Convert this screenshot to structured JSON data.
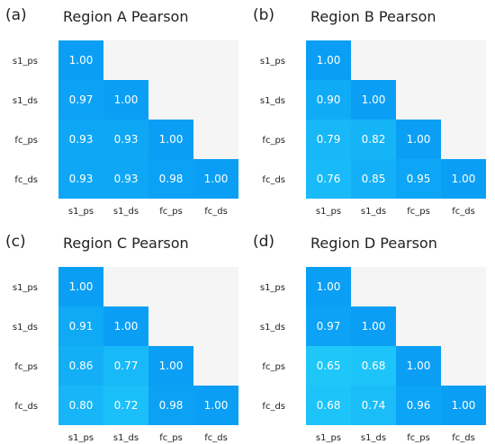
{
  "chart_data": [
    {
      "type": "heatmap",
      "panel_label": "(a)",
      "title": "Region A Pearson",
      "row_labels": [
        "s1_ps",
        "s1_ds",
        "fc_ps",
        "fc_ds"
      ],
      "col_labels": [
        "s1_ps",
        "s1_ds",
        "fc_ps",
        "fc_ds"
      ],
      "triangle": "lower",
      "values": [
        [
          1.0,
          null,
          null,
          null
        ],
        [
          0.97,
          1.0,
          null,
          null
        ],
        [
          0.93,
          0.93,
          1.0,
          null
        ],
        [
          0.93,
          0.93,
          0.98,
          1.0
        ]
      ]
    },
    {
      "type": "heatmap",
      "panel_label": "(b)",
      "title": "Region B Pearson",
      "row_labels": [
        "s1_ps",
        "s1_ds",
        "fc_ps",
        "fc_ds"
      ],
      "col_labels": [
        "s1_ps",
        "s1_ds",
        "fc_ps",
        "fc_ds"
      ],
      "triangle": "lower",
      "values": [
        [
          1.0,
          null,
          null,
          null
        ],
        [
          0.9,
          1.0,
          null,
          null
        ],
        [
          0.79,
          0.82,
          1.0,
          null
        ],
        [
          0.76,
          0.85,
          0.95,
          1.0
        ]
      ]
    },
    {
      "type": "heatmap",
      "panel_label": "(c)",
      "title": "Region C Pearson",
      "row_labels": [
        "s1_ps",
        "s1_ds",
        "fc_ps",
        "fc_ds"
      ],
      "col_labels": [
        "s1_ps",
        "s1_ds",
        "fc_ps",
        "fc_ds"
      ],
      "triangle": "lower",
      "values": [
        [
          1.0,
          null,
          null,
          null
        ],
        [
          0.91,
          1.0,
          null,
          null
        ],
        [
          0.86,
          0.77,
          1.0,
          null
        ],
        [
          0.8,
          0.72,
          0.98,
          1.0
        ]
      ]
    },
    {
      "type": "heatmap",
      "panel_label": "(d)",
      "title": "Region D Pearson",
      "row_labels": [
        "s1_ps",
        "s1_ds",
        "fc_ps",
        "fc_ds"
      ],
      "col_labels": [
        "s1_ps",
        "s1_ds",
        "fc_ps",
        "fc_ds"
      ],
      "triangle": "lower",
      "values": [
        [
          1.0,
          null,
          null,
          null
        ],
        [
          0.97,
          1.0,
          null,
          null
        ],
        [
          0.65,
          0.68,
          1.0,
          null
        ],
        [
          0.68,
          0.74,
          0.96,
          1.0
        ]
      ]
    }
  ],
  "colors": {
    "high": "#0a9ff5",
    "low": "#22cdfa",
    "empty": "#f5f5f5",
    "cell_text": "#ffffff"
  }
}
